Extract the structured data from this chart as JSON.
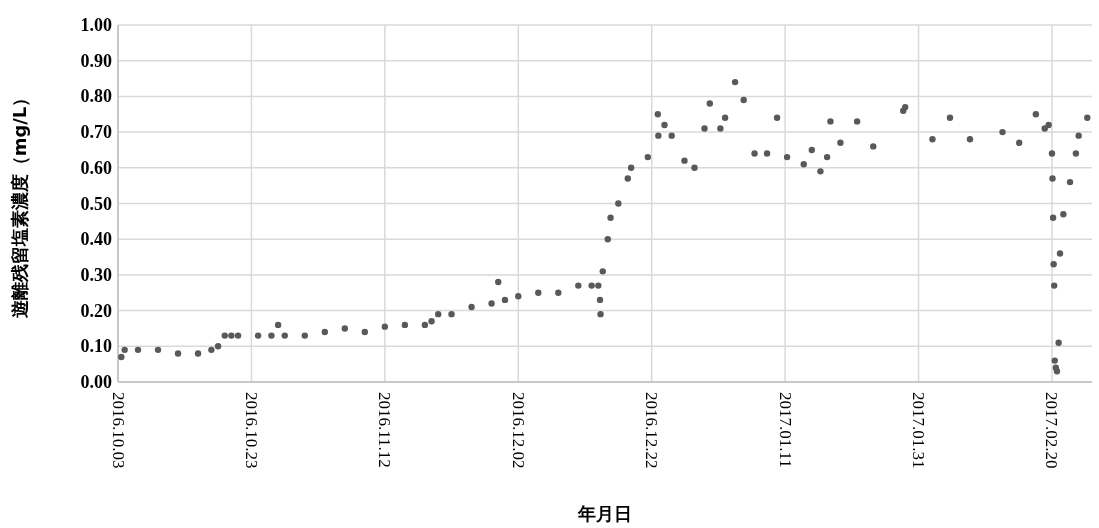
{
  "chart_data": {
    "type": "scatter",
    "xlabel": "年月日",
    "ylabel": "遊離残留塩素濃度（mg/L）",
    "marker": "circle",
    "grid": true,
    "xlim": [
      "2016-10-03",
      "2017-02-26"
    ],
    "ylim": [
      0,
      1
    ],
    "yticks": [
      {
        "value": 0,
        "label": "0.00"
      },
      {
        "value": 0.1,
        "label": "0.10"
      },
      {
        "value": 0.2,
        "label": "0.20"
      },
      {
        "value": 0.3,
        "label": "0.30"
      },
      {
        "value": 0.4,
        "label": "0.40"
      },
      {
        "value": 0.5,
        "label": "0.50"
      },
      {
        "value": 0.6,
        "label": "0.60"
      },
      {
        "value": 0.7,
        "label": "0.70"
      },
      {
        "value": 0.8,
        "label": "0.80"
      },
      {
        "value": 0.9,
        "label": "0.90"
      },
      {
        "value": 1,
        "label": "1.00"
      }
    ],
    "xticks": [
      {
        "value": "2016-10-03",
        "label": "2016.10.03"
      },
      {
        "value": "2016-10-23",
        "label": "2016.10.23"
      },
      {
        "value": "2016-11-12",
        "label": "2016.11.12"
      },
      {
        "value": "2016-12-02",
        "label": "2016.12.02"
      },
      {
        "value": "2016-12-22",
        "label": "2016.12.22"
      },
      {
        "value": "2017-01-11",
        "label": "2017.01.11"
      },
      {
        "value": "2017-01-31",
        "label": "2017.01.31"
      },
      {
        "value": "2017-02-20",
        "label": "2017.02.20"
      }
    ],
    "series": [
      {
        "color": "#595959",
        "x": [
          "2016-10-03T12:00",
          "2016-10-04",
          "2016-10-06",
          "2016-10-09",
          "2016-10-12",
          "2016-10-15",
          "2016-10-17",
          "2016-10-18",
          "2016-10-19",
          "2016-10-20",
          "2016-10-21",
          "2016-10-24",
          "2016-10-26",
          "2016-10-27",
          "2016-10-28",
          "2016-10-31",
          "2016-11-03",
          "2016-11-06",
          "2016-11-09",
          "2016-11-12",
          "2016-11-15",
          "2016-11-18",
          "2016-11-19",
          "2016-11-20",
          "2016-11-22",
          "2016-11-25",
          "2016-11-28",
          "2016-11-29",
          "2016-11-30",
          "2016-12-02",
          "2016-12-05",
          "2016-12-08",
          "2016-12-11",
          "2016-12-13",
          "2016-12-14T00:00",
          "2016-12-14T06:00",
          "2016-12-14T08:00",
          "2016-12-14T16:00",
          "2016-12-15T10:00",
          "2016-12-15T20:00",
          "2016-12-17",
          "2016-12-18T10:00",
          "2016-12-18T22:00",
          "2016-12-21T10:00",
          "2016-12-22T22:00",
          "2016-12-23",
          "2016-12-23T22:00",
          "2016-12-25",
          "2016-12-26T22:00",
          "2016-12-28T10:00",
          "2016-12-29T22:00",
          "2016-12-30T17:00",
          "2017-01-01T07:00",
          "2017-01-02",
          "2017-01-03T12:00",
          "2017-01-04T19:00",
          "2017-01-06T10:00",
          "2017-01-08T07:00",
          "2017-01-09T19:00",
          "2017-01-11T07:00",
          "2017-01-13T19:00",
          "2017-01-15",
          "2017-01-16T07:00",
          "2017-01-17T07:00",
          "2017-01-17T19:00",
          "2017-01-19T07:00",
          "2017-01-21T19:00",
          "2017-01-24T05:00",
          "2017-01-28T17:00",
          "2017-01-29",
          "2017-02-02T02:00",
          "2017-02-04T17:00",
          "2017-02-07T17:00",
          "2017-02-12T14:00",
          "2017-02-15T02:00",
          "2017-02-17T14:00",
          "2017-02-18T22:00",
          "2017-02-19T12:00",
          "2017-02-20T00:00",
          "2017-02-20T02:00",
          "2017-02-20T04:00",
          "2017-02-20T06:00",
          "2017-02-20T08:00",
          "2017-02-20T10:00",
          "2017-02-20T14:00",
          "2017-02-20T18:00",
          "2017-02-21",
          "2017-02-21T05:00",
          "2017-02-21T17:00",
          "2017-02-22T17:00",
          "2017-02-23T14:00",
          "2017-02-24",
          "2017-02-25T07:00"
        ],
        "values": [
          0.07,
          0.09,
          0.09,
          0.09,
          0.08,
          0.08,
          0.09,
          0.1,
          0.13,
          0.13,
          0.13,
          0.13,
          0.13,
          0.16,
          0.13,
          0.13,
          0.14,
          0.15,
          0.14,
          0.155,
          0.16,
          0.16,
          0.17,
          0.19,
          0.19,
          0.21,
          0.22,
          0.28,
          0.23,
          0.24,
          0.25,
          0.25,
          0.27,
          0.27,
          0.27,
          0.23,
          0.19,
          0.31,
          0.4,
          0.46,
          0.5,
          0.57,
          0.6,
          0.63,
          0.75,
          0.69,
          0.72,
          0.69,
          0.62,
          0.6,
          0.71,
          0.78,
          0.71,
          0.74,
          0.84,
          0.79,
          0.64,
          0.64,
          0.74,
          0.63,
          0.61,
          0.65,
          0.59,
          0.63,
          0.73,
          0.67,
          0.73,
          0.66,
          0.76,
          0.77,
          0.68,
          0.74,
          0.68,
          0.7,
          0.67,
          0.75,
          0.71,
          0.72,
          0.64,
          0.57,
          0.46,
          0.33,
          0.27,
          0.06,
          0.04,
          0.03,
          0.11,
          0.36,
          0.47,
          0.56,
          0.64,
          0.69,
          0.74
        ]
      }
    ]
  }
}
